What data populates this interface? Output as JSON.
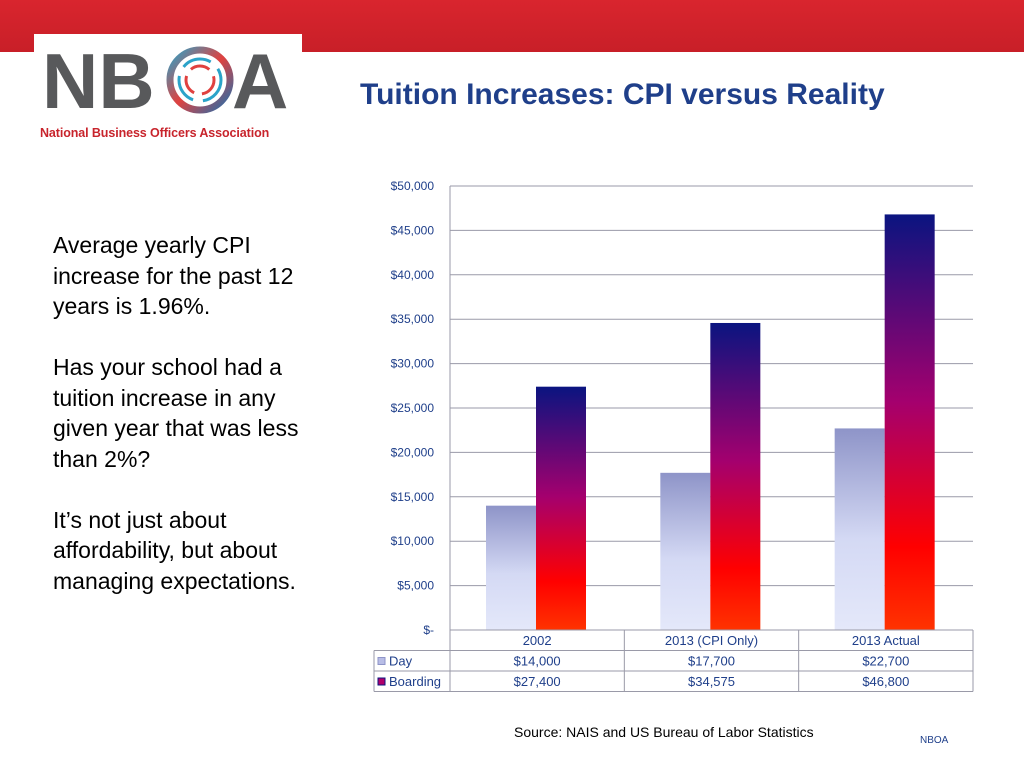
{
  "header": {
    "title": "Tuition Increases: CPI versus Reality"
  },
  "logo": {
    "wordmark": "NBOA",
    "subtitle": "National Business Officers Association"
  },
  "body": {
    "paragraphs": [
      "Average yearly CPI increase for the past 12 years is 1.96%.",
      "Has your school had a tuition increase in any given year that was less than 2%?",
      "It’s not just about affordability, but about managing expectations."
    ]
  },
  "footer": {
    "source": "Source:  NAIS and US Bureau of Labor Statistics",
    "tag": "NBOA"
  },
  "colors": {
    "accent_red": "#d9252e",
    "title_blue": "#1f3f8a",
    "day_top": "#8e94c8",
    "day_bottom": "#d8dcf5",
    "boarding_top": "#0a1480",
    "boarding_mid": "#b0006a",
    "boarding_bottom": "#ff0000"
  },
  "chart_data": {
    "type": "bar",
    "categories": [
      "2002",
      "2013 (CPI Only)",
      "2013 Actual"
    ],
    "series": [
      {
        "name": "Day",
        "values": [
          14000,
          17700,
          22700
        ],
        "labels": [
          "$14,000",
          "$17,700",
          "$22,700"
        ]
      },
      {
        "name": "Boarding",
        "values": [
          27400,
          34575,
          46800
        ],
        "labels": [
          "$27,400",
          "$34,575",
          "$46,800"
        ]
      }
    ],
    "yticks": [
      "$-",
      "$5,000",
      "$10,000",
      "$15,000",
      "$20,000",
      "$25,000",
      "$30,000",
      "$35,000",
      "$40,000",
      "$45,000",
      "$50,000"
    ],
    "ylim": [
      0,
      50000
    ],
    "grid": true,
    "legend": "data-table"
  }
}
